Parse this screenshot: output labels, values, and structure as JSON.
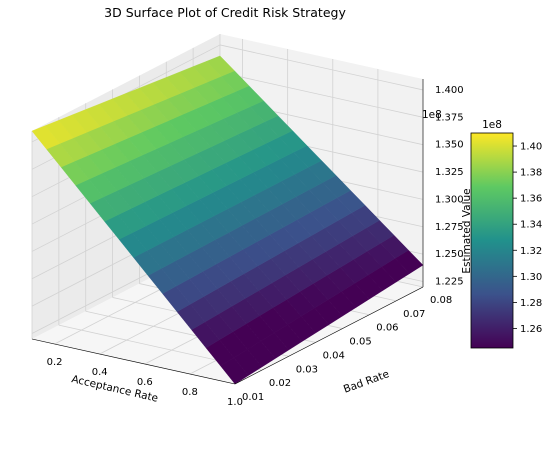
{
  "chart_data": {
    "type": "surface3d",
    "title": "3D Surface Plot of Credit Risk Strategy",
    "xlabel": "Acceptance Rate",
    "ylabel": "Bad Rate",
    "zlabel": "Estimated Value",
    "xlim": [
      0.1,
      1.0
    ],
    "ylim": [
      0.01,
      0.08
    ],
    "zlim": [
      1.22,
      1.41
    ],
    "z_multiplier_label": "1e8",
    "x_ticks": [
      "0.2",
      "0.4",
      "0.6",
      "0.8",
      "1.0"
    ],
    "y_ticks": [
      "0.01",
      "0.02",
      "0.03",
      "0.04",
      "0.05",
      "0.06",
      "0.07",
      "0.08"
    ],
    "z_ticks": [
      "1.225",
      "1.250",
      "1.275",
      "1.300",
      "1.325",
      "1.350",
      "1.375",
      "1.400"
    ],
    "z_corners": {
      "x_min_y_min": 1.41,
      "x_max_y_min": 1.22,
      "x_min_y_max": 1.39,
      "x_max_y_max": 1.24
    },
    "colormap": "viridis",
    "colormap_stops": [
      "#440154",
      "#3b528b",
      "#21918c",
      "#5ec962",
      "#fde725"
    ],
    "colorbar": {
      "range": [
        1.245,
        1.41
      ],
      "ticks": [
        "1.26",
        "1.28",
        "1.30",
        "1.32",
        "1.34",
        "1.36",
        "1.38",
        "1.40"
      ],
      "multiplier_label": "1e8"
    },
    "grid": true
  }
}
